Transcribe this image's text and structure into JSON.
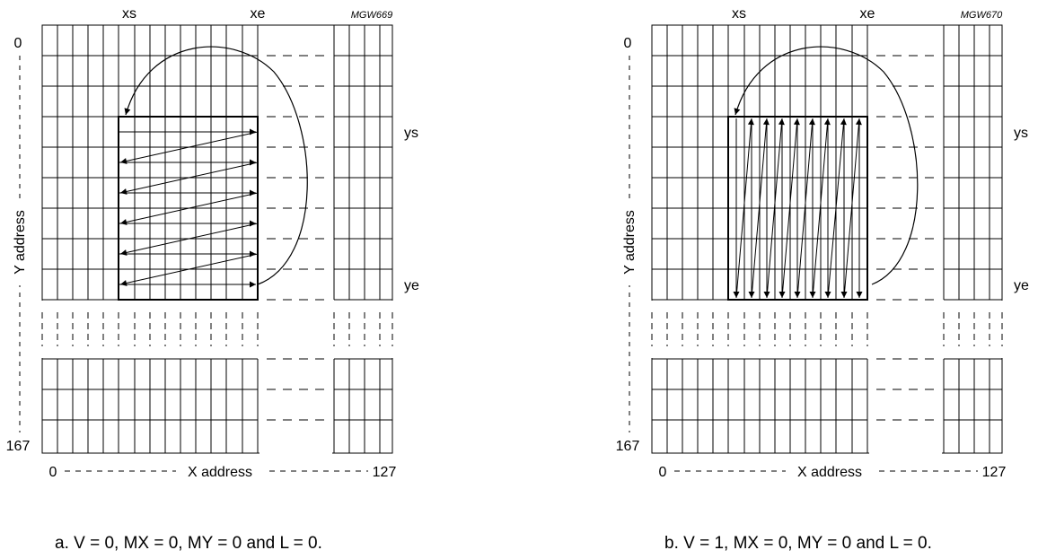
{
  "panels": [
    {
      "ref": "MGW669",
      "xs_label": "xs",
      "xe_label": "xe",
      "ys_label": "ys",
      "ye_label": "ye",
      "y_top": "0",
      "y_bottom": "167",
      "y_axis_title": "Y address",
      "x_left": "0",
      "x_right": "127",
      "x_axis_title": "X address",
      "caption": "a.  V = 0, MX = 0, MY = 0 and L = 0.",
      "scan_direction": "horizontal"
    },
    {
      "ref": "MGW670",
      "xs_label": "xs",
      "xe_label": "xe",
      "ys_label": "ys",
      "ye_label": "ye",
      "y_top": "0",
      "y_bottom": "167",
      "y_axis_title": "Y address",
      "x_left": "0",
      "x_right": "127",
      "x_axis_title": "X address",
      "caption": "b.  V = 1, MX = 0, MY = 0 and L = 0.",
      "scan_direction": "vertical"
    }
  ]
}
